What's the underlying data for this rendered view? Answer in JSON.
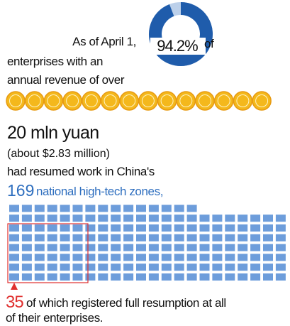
{
  "intro": "As of April 1,",
  "donut": {
    "value": 94.2,
    "label": "94.2%"
  },
  "of": "of",
  "line2": "enterprises with an",
  "line3": "annual revenue of over",
  "amount": "20 mln yuan",
  "amount_usd": "(about $2.83 million)",
  "line4": "had resumed work in China's",
  "zones": {
    "count": 169,
    "text": "national high-tech zones,"
  },
  "full": {
    "count": 35,
    "text": "of which registered full resumption at all",
    "text2": "of their enterprises."
  }
}
